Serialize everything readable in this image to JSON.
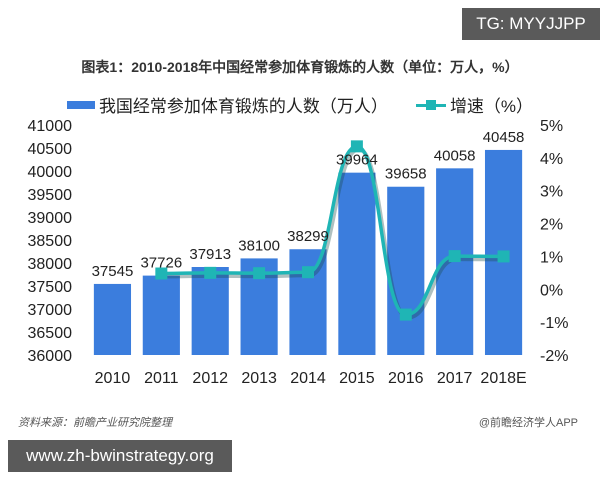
{
  "watermark_badge": "TG: MYYJJPP",
  "url_badge": "www.zh-bwinstrategy.org",
  "source_note": "资料来源：前瞻产业研究院整理",
  "credit": "@前瞻经济学人APP",
  "colors": {
    "bar": "#3b7ddd",
    "line": "#1fb5b5"
  },
  "chart_data": {
    "type": "bar+line",
    "title": "图表1：2010-2018年中国经常参加体育锻炼的人数（单位：万人，%）",
    "categories": [
      "2010",
      "2011",
      "2012",
      "2013",
      "2014",
      "2015",
      "2016",
      "2017",
      "2018E"
    ],
    "series": [
      {
        "name": "我国经常参加体育锻炼的人数（万人）",
        "type": "bar",
        "axis": "left",
        "values": [
          37545,
          37726,
          37913,
          38100,
          38299,
          39964,
          39658,
          40058,
          40458
        ],
        "labels": [
          "37545",
          "37726",
          "37913",
          "38100",
          "38299",
          "39964",
          "39658",
          "40058",
          "40458"
        ]
      },
      {
        "name": "增速（%）",
        "type": "line",
        "axis": "right",
        "values": [
          null,
          0.48,
          0.5,
          0.49,
          0.52,
          4.35,
          -0.77,
          1.01,
          1.0
        ]
      }
    ],
    "left_axis": {
      "min": 36000,
      "max": 41000,
      "step": 500,
      "ticks": [
        "41000",
        "40500",
        "40000",
        "39500",
        "39000",
        "38500",
        "38000",
        "37500",
        "37000",
        "36500",
        "36000"
      ]
    },
    "right_axis": {
      "min": -2,
      "max": 5,
      "step": 1,
      "ticks": [
        "5%",
        "4%",
        "3%",
        "2%",
        "1%",
        "0%",
        "-1%",
        "-2%"
      ]
    },
    "legend_position": "top",
    "grid": false
  }
}
